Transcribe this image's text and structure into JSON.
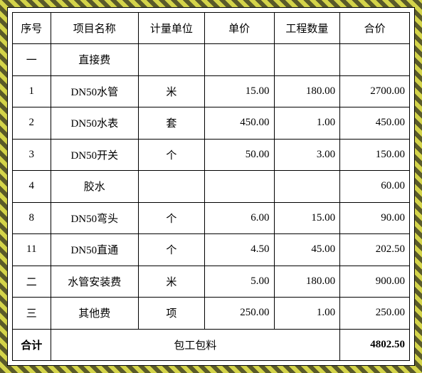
{
  "table": {
    "type": "table",
    "columns": [
      {
        "label": "序号",
        "align": "center"
      },
      {
        "label": "项目名称",
        "align": "center"
      },
      {
        "label": "计量单位",
        "align": "center"
      },
      {
        "label": "单价",
        "align": "right"
      },
      {
        "label": "工程数量",
        "align": "right"
      },
      {
        "label": "合价",
        "align": "right"
      }
    ],
    "rows": [
      {
        "seq": "一",
        "name": "直接费",
        "unit": "",
        "price": "",
        "qty": "",
        "total": ""
      },
      {
        "seq": "1",
        "name": "DN50水管",
        "unit": "米",
        "price": "15.00",
        "qty": "180.00",
        "total": "2700.00"
      },
      {
        "seq": "2",
        "name": "DN50水表",
        "unit": "套",
        "price": "450.00",
        "qty": "1.00",
        "total": "450.00"
      },
      {
        "seq": "3",
        "name": "DN50开关",
        "unit": "个",
        "price": "50.00",
        "qty": "3.00",
        "total": "150.00"
      },
      {
        "seq": "4",
        "name": "胶水",
        "unit": "",
        "price": "",
        "qty": "",
        "total": "60.00"
      },
      {
        "seq": "8",
        "name": "DN50弯头",
        "unit": "个",
        "price": "6.00",
        "qty": "15.00",
        "total": "90.00"
      },
      {
        "seq": "11",
        "name": "DN50直通",
        "unit": "个",
        "price": "4.50",
        "qty": "45.00",
        "total": "202.50"
      },
      {
        "seq": "二",
        "name": "水管安装费",
        "unit": "米",
        "price": "5.00",
        "qty": "180.00",
        "total": "900.00"
      },
      {
        "seq": "三",
        "name": "其他费",
        "unit": "项",
        "price": "250.00",
        "qty": "1.00",
        "total": "250.00"
      }
    ],
    "footer": {
      "label": "合计",
      "note": "包工包料",
      "total": "4802.50"
    },
    "border_color": "#000000",
    "background_color": "#ffffff",
    "font_size": 15
  }
}
